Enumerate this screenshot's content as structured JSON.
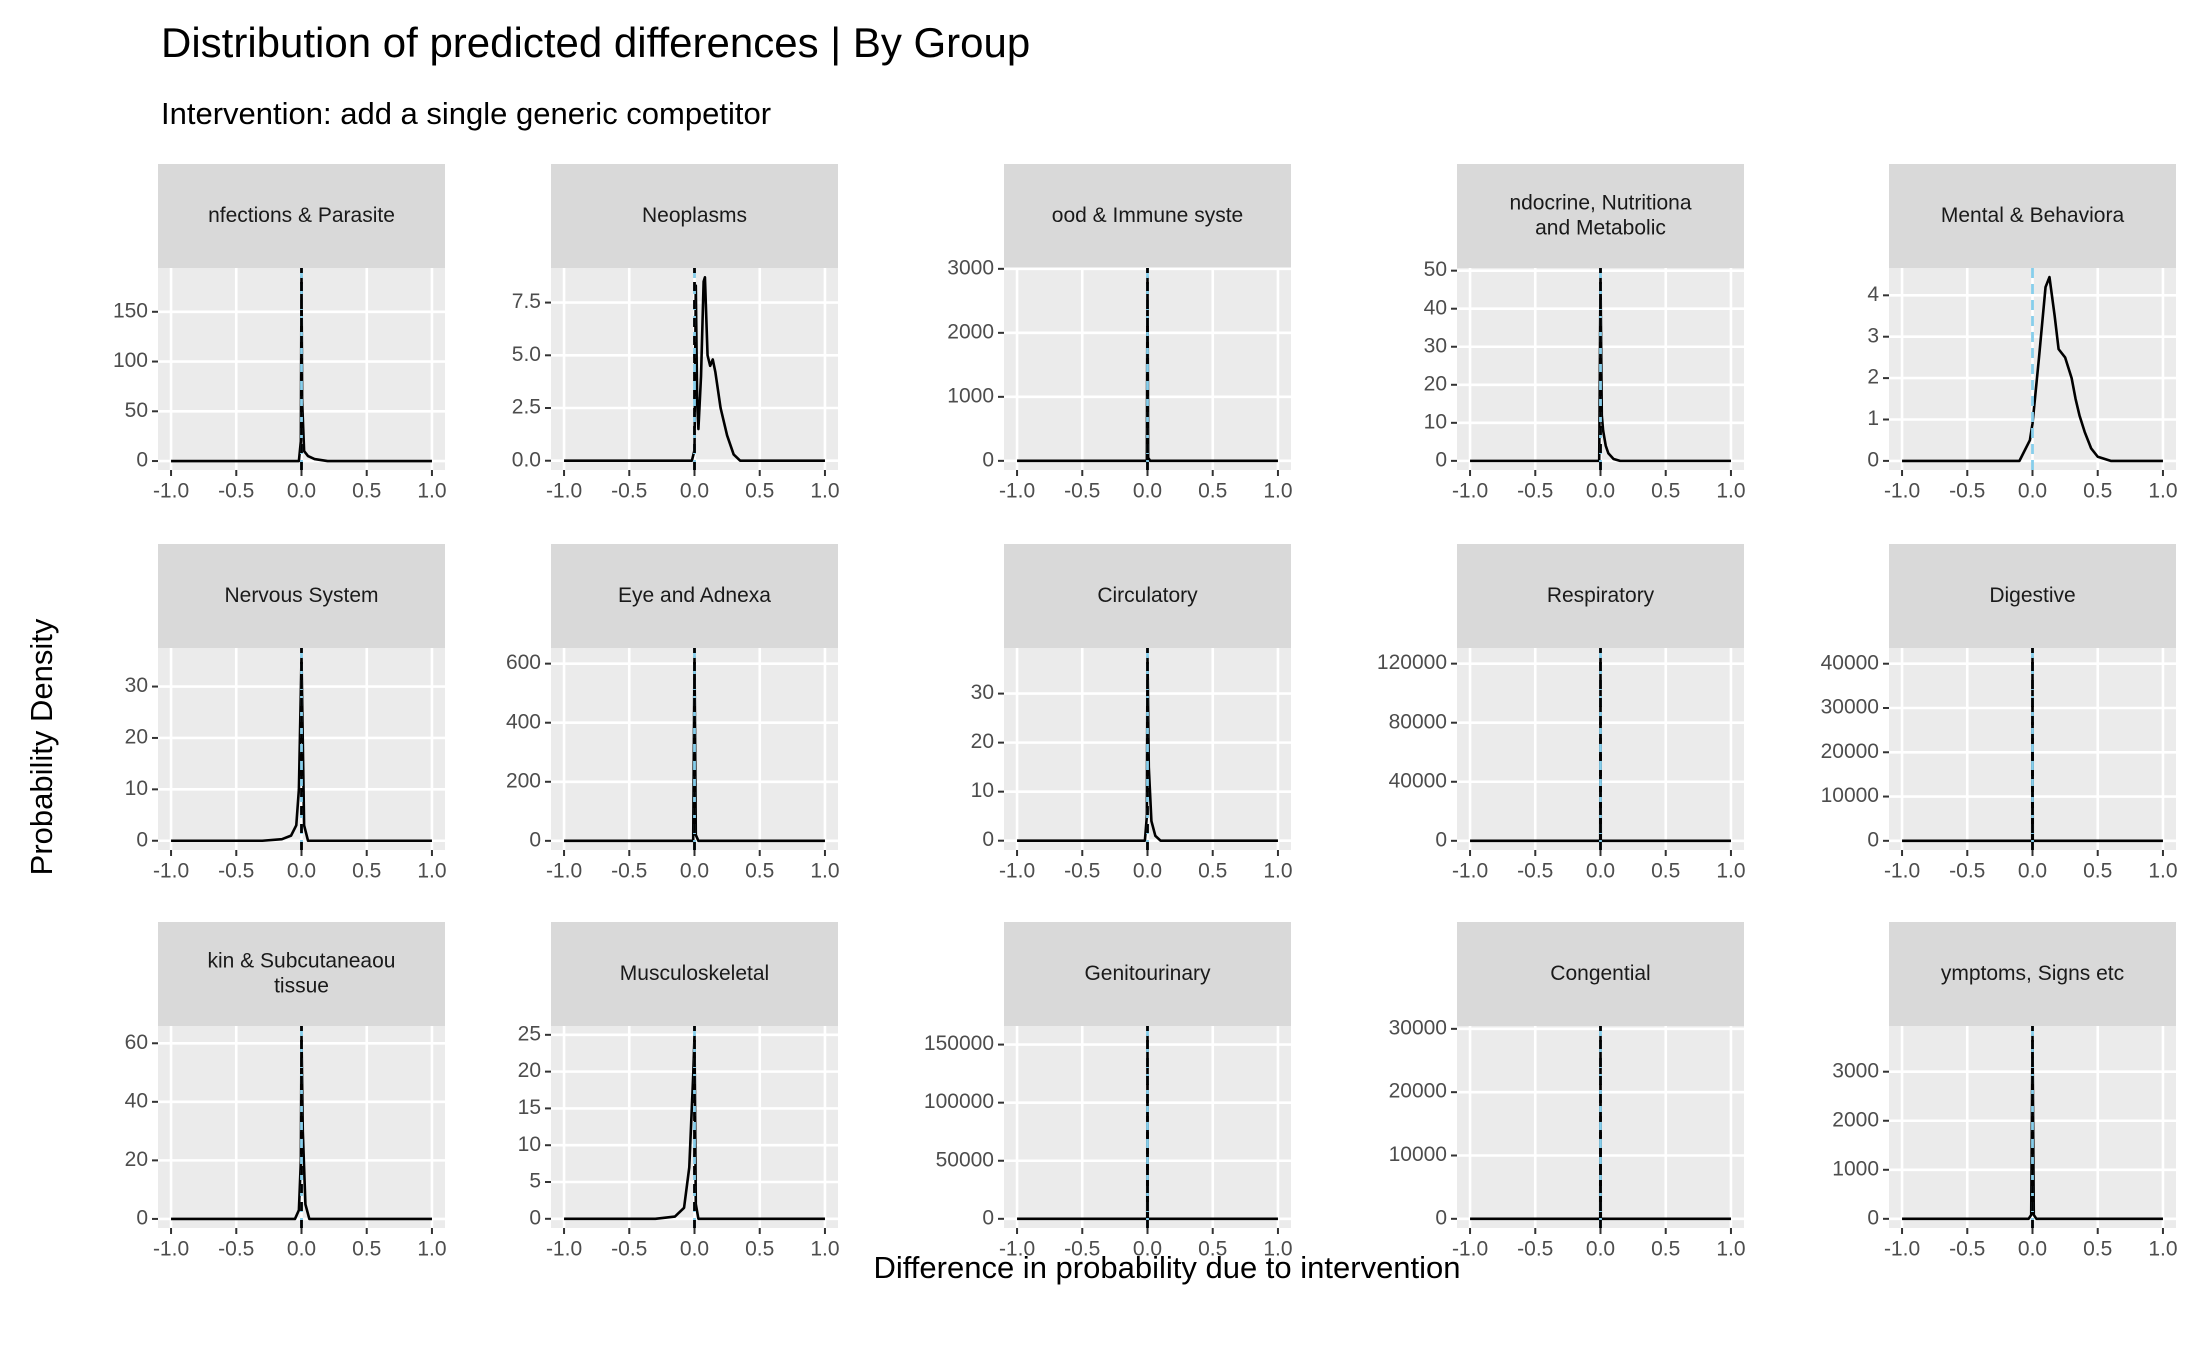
{
  "title": "Distribution of predicted differences | By Group",
  "subtitle": "Intervention: add a single generic competitor",
  "x_label": "Difference in probability due to intervention",
  "y_label": "Probability Density",
  "chart_data": [
    {
      "type": "line",
      "title": [
        "nfections & Parasite"
      ],
      "x": [
        -1,
        -0.02,
        -0.005,
        0,
        0.005,
        0.02,
        0.05,
        0.1,
        0.2,
        1
      ],
      "values": [
        0,
        0,
        20,
        185,
        60,
        10,
        5,
        2,
        0,
        0
      ],
      "color": "#000000",
      "xlim": [
        -1.1,
        1.1
      ],
      "ylim": [
        -9,
        194
      ],
      "xticks": [
        {
          "value": -1,
          "label": "-1.0"
        },
        {
          "value": -0.5,
          "label": "-0.5"
        },
        {
          "value": 0,
          "label": "0.0"
        },
        0.5,
        {
          "value": 1,
          "label": "1.0"
        }
      ],
      "yticks": [
        0,
        50,
        100,
        150
      ],
      "vlines": [
        {
          "value": 0,
          "color": "#87ceeb"
        },
        {
          "value": 0,
          "color": "#000000"
        }
      ],
      "grid": true
    },
    {
      "type": "line",
      "title": [
        "Neoplasms"
      ],
      "x": [
        -1,
        -0.02,
        0,
        0.01,
        0.02,
        0.03,
        0.05,
        0.07,
        0.08,
        0.1,
        0.12,
        0.14,
        0.16,
        0.2,
        0.25,
        0.3,
        0.35,
        1
      ],
      "values": [
        0,
        0,
        0.5,
        8.3,
        3,
        1.5,
        4,
        8.5,
        8.7,
        5,
        4.5,
        4.8,
        4.2,
        2.5,
        1.2,
        0.3,
        0,
        0
      ],
      "color": "#000000",
      "xlim": [
        -1.1,
        1.1
      ],
      "ylim": [
        -0.44,
        9.14
      ],
      "xticks": [
        {
          "value": -1,
          "label": "-1.0"
        },
        {
          "value": -0.5,
          "label": "-0.5"
        },
        {
          "value": 0,
          "label": "0.0"
        },
        0.5,
        {
          "value": 1,
          "label": "1.0"
        }
      ],
      "yticks": [
        {
          "value": 0,
          "label": "0.0"
        },
        2.5,
        {
          "value": 5,
          "label": "5.0"
        },
        7.5
      ],
      "vlines": [
        {
          "value": 0,
          "color": "#87ceeb"
        },
        {
          "value": 0,
          "color": "#000000"
        }
      ],
      "grid": true
    },
    {
      "type": "line",
      "title": [
        "ood & Immune syste"
      ],
      "x": [
        -1,
        -0.005,
        0,
        0.005,
        0.02,
        1
      ],
      "values": [
        0,
        0,
        2870,
        50,
        0,
        0
      ],
      "color": "#000000",
      "xlim": [
        -1.1,
        1.1
      ],
      "ylim": [
        -143,
        3013
      ],
      "xticks": [
        {
          "value": -1,
          "label": "-1.0"
        },
        {
          "value": -0.5,
          "label": "-0.5"
        },
        {
          "value": 0,
          "label": "0.0"
        },
        0.5,
        {
          "value": 1,
          "label": "1.0"
        }
      ],
      "yticks": [
        0,
        1000,
        2000,
        3000
      ],
      "vlines": [
        {
          "value": 0,
          "color": "#87ceeb"
        },
        {
          "value": 0,
          "color": "#000000"
        }
      ],
      "grid": true
    },
    {
      "type": "line",
      "title": [
        "ndocrine, Nutritiona",
        "and Metabolic"
      ],
      "x": [
        -1,
        -0.01,
        0,
        0.01,
        0.02,
        0.04,
        0.06,
        0.1,
        0.15,
        1
      ],
      "values": [
        0,
        0,
        48.3,
        12,
        8,
        4,
        2,
        0.5,
        0,
        0
      ],
      "color": "#000000",
      "xlim": [
        -1.1,
        1.1
      ],
      "ylim": [
        -2.4,
        50.7
      ],
      "xticks": [
        {
          "value": -1,
          "label": "-1.0"
        },
        {
          "value": -0.5,
          "label": "-0.5"
        },
        {
          "value": 0,
          "label": "0.0"
        },
        0.5,
        {
          "value": 1,
          "label": "1.0"
        }
      ],
      "yticks": [
        0,
        10,
        20,
        30,
        40,
        50
      ],
      "vlines": [
        {
          "value": 0,
          "color": "#87ceeb"
        },
        {
          "value": 0,
          "color": "#000000"
        }
      ],
      "grid": true
    },
    {
      "type": "line",
      "title": [
        "Mental & Behaviora"
      ],
      "x": [
        -1,
        -0.1,
        -0.02,
        0,
        0.05,
        0.1,
        0.13,
        0.17,
        0.2,
        0.25,
        0.3,
        0.33,
        0.36,
        0.4,
        0.45,
        0.5,
        0.6,
        1
      ],
      "values": [
        0,
        0,
        0.5,
        0.9,
        2.5,
        4.2,
        4.44,
        3.5,
        2.7,
        2.5,
        2,
        1.5,
        1.1,
        0.7,
        0.3,
        0.1,
        0,
        0
      ],
      "color": "#000000",
      "xlim": [
        -1.1,
        1.1
      ],
      "ylim": [
        -0.22,
        4.66
      ],
      "xticks": [
        {
          "value": -1,
          "label": "-1.0"
        },
        {
          "value": -0.5,
          "label": "-0.5"
        },
        {
          "value": 0,
          "label": "0.0"
        },
        0.5,
        {
          "value": 1,
          "label": "1.0"
        }
      ],
      "yticks": [
        0,
        1,
        2,
        3,
        4
      ],
      "vlines": [
        {
          "value": 0,
          "color": "#87ceeb"
        }
      ],
      "grid": true
    },
    {
      "type": "line",
      "title": [
        "Nervous System"
      ],
      "x": [
        -1,
        -0.3,
        -0.15,
        -0.08,
        -0.04,
        -0.02,
        0,
        0.02,
        0.05,
        1
      ],
      "values": [
        0,
        0,
        0.3,
        1,
        3,
        10,
        35.7,
        3,
        0,
        0
      ],
      "color": "#000000",
      "xlim": [
        -1.1,
        1.1
      ],
      "ylim": [
        -1.8,
        37.5
      ],
      "xticks": [
        {
          "value": -1,
          "label": "-1.0"
        },
        {
          "value": -0.5,
          "label": "-0.5"
        },
        {
          "value": 0,
          "label": "0.0"
        },
        0.5,
        {
          "value": 1,
          "label": "1.0"
        }
      ],
      "yticks": [
        0,
        10,
        20,
        30
      ],
      "vlines": [
        {
          "value": 0,
          "color": "#87ceeb"
        },
        {
          "value": 0,
          "color": "#000000"
        }
      ],
      "grid": true
    },
    {
      "type": "line",
      "title": [
        "Eye and Adnexa"
      ],
      "x": [
        -1,
        -0.01,
        0,
        0.01,
        0.03,
        1
      ],
      "values": [
        0,
        0,
        622,
        20,
        0,
        0
      ],
      "color": "#000000",
      "xlim": [
        -1.1,
        1.1
      ],
      "ylim": [
        -31,
        653
      ],
      "xticks": [
        {
          "value": -1,
          "label": "-1.0"
        },
        {
          "value": -0.5,
          "label": "-0.5"
        },
        {
          "value": 0,
          "label": "0.0"
        },
        0.5,
        {
          "value": 1,
          "label": "1.0"
        }
      ],
      "yticks": [
        0,
        200,
        400,
        600
      ],
      "vlines": [
        {
          "value": 0,
          "color": "#87ceeb"
        },
        {
          "value": 0,
          "color": "#000000"
        }
      ],
      "grid": true
    },
    {
      "type": "line",
      "title": [
        "Circulatory"
      ],
      "x": [
        -1,
        -0.02,
        -0.005,
        0,
        0.01,
        0.03,
        0.06,
        0.1,
        1
      ],
      "values": [
        0,
        0,
        5,
        37.4,
        15,
        4,
        1,
        0,
        0
      ],
      "color": "#000000",
      "xlim": [
        -1.1,
        1.1
      ],
      "ylim": [
        -1.9,
        39.3
      ],
      "xticks": [
        {
          "value": -1,
          "label": "-1.0"
        },
        {
          "value": -0.5,
          "label": "-0.5"
        },
        {
          "value": 0,
          "label": "0.0"
        },
        0.5,
        {
          "value": 1,
          "label": "1.0"
        }
      ],
      "yticks": [
        0,
        10,
        20,
        30
      ],
      "vlines": [
        {
          "value": 0,
          "color": "#87ceeb"
        },
        {
          "value": 0,
          "color": "#000000"
        }
      ],
      "grid": true
    },
    {
      "type": "line",
      "title": [
        "Respiratory"
      ],
      "x": [
        -1,
        -0.002,
        0,
        0.002,
        1
      ],
      "values": [
        0,
        0,
        124400,
        0,
        0
      ],
      "color": "#000000",
      "xlim": [
        -1.1,
        1.1
      ],
      "ylim": [
        -6220,
        130600
      ],
      "xticks": [
        {
          "value": -1,
          "label": "-1.0"
        },
        {
          "value": -0.5,
          "label": "-0.5"
        },
        {
          "value": 0,
          "label": "0.0"
        },
        0.5,
        {
          "value": 1,
          "label": "1.0"
        }
      ],
      "yticks": [
        0,
        40000,
        80000,
        120000
      ],
      "vlines": [
        {
          "value": 0,
          "color": "#87ceeb"
        },
        {
          "value": 0,
          "color": "#000000"
        }
      ],
      "grid": true
    },
    {
      "type": "line",
      "title": [
        "Digestive"
      ],
      "x": [
        -1,
        -0.002,
        0,
        0.002,
        1
      ],
      "values": [
        0,
        0,
        41480,
        0,
        0
      ],
      "color": "#000000",
      "xlim": [
        -1.1,
        1.1
      ],
      "ylim": [
        -2074,
        43550
      ],
      "xticks": [
        {
          "value": -1,
          "label": "-1.0"
        },
        {
          "value": -0.5,
          "label": "-0.5"
        },
        {
          "value": 0,
          "label": "0.0"
        },
        0.5,
        {
          "value": 1,
          "label": "1.0"
        }
      ],
      "yticks": [
        0,
        10000,
        20000,
        30000,
        40000
      ],
      "vlines": [
        {
          "value": 0,
          "color": "#87ceeb"
        },
        {
          "value": 0,
          "color": "#000000"
        }
      ],
      "grid": true
    },
    {
      "type": "line",
      "title": [
        "kin & Subcutaneaou",
        "tissue"
      ],
      "x": [
        -1,
        -0.05,
        -0.02,
        -0.005,
        0,
        0.01,
        0.03,
        0.06,
        1
      ],
      "values": [
        0,
        0,
        3,
        20,
        62.7,
        30,
        5,
        0,
        0
      ],
      "color": "#000000",
      "xlim": [
        -1.1,
        1.1
      ],
      "ylim": [
        -3.1,
        65.9
      ],
      "xticks": [
        {
          "value": -1,
          "label": "-1.0"
        },
        {
          "value": -0.5,
          "label": "-0.5"
        },
        {
          "value": 0,
          "label": "0.0"
        },
        0.5,
        {
          "value": 1,
          "label": "1.0"
        }
      ],
      "yticks": [
        0,
        20,
        40,
        60
      ],
      "vlines": [
        {
          "value": 0,
          "color": "#87ceeb"
        },
        {
          "value": 0,
          "color": "#000000"
        }
      ],
      "grid": true
    },
    {
      "type": "line",
      "title": [
        "Musculoskeletal"
      ],
      "x": [
        -1,
        -0.3,
        -0.15,
        -0.08,
        -0.04,
        -0.01,
        0,
        0.01,
        0.03,
        1
      ],
      "values": [
        0,
        0,
        0.3,
        1.5,
        7,
        19.5,
        24.9,
        2,
        0,
        0
      ],
      "color": "#000000",
      "xlim": [
        -1.1,
        1.1
      ],
      "ylim": [
        -1.25,
        26.2
      ],
      "xticks": [
        {
          "value": -1,
          "label": "-1.0"
        },
        {
          "value": -0.5,
          "label": "-0.5"
        },
        {
          "value": 0,
          "label": "0.0"
        },
        0.5,
        {
          "value": 1,
          "label": "1.0"
        }
      ],
      "yticks": [
        0,
        5,
        10,
        15,
        20,
        25
      ],
      "vlines": [
        {
          "value": 0,
          "color": "#87ceeb"
        },
        {
          "value": 0,
          "color": "#000000"
        }
      ],
      "grid": true
    },
    {
      "type": "line",
      "title": [
        "Genitourinary"
      ],
      "x": [
        -1,
        -0.002,
        0,
        0.002,
        1
      ],
      "values": [
        0,
        0,
        158000,
        0,
        0
      ],
      "color": "#000000",
      "xlim": [
        -1.1,
        1.1
      ],
      "ylim": [
        -7900,
        166000
      ],
      "xticks": [
        {
          "value": -1,
          "label": "-1.0"
        },
        {
          "value": -0.5,
          "label": "-0.5"
        },
        {
          "value": 0,
          "label": "0.0"
        },
        0.5,
        {
          "value": 1,
          "label": "1.0"
        }
      ],
      "yticks": [
        0,
        50000,
        100000,
        150000
      ],
      "vlines": [
        {
          "value": 0,
          "color": "#87ceeb"
        },
        {
          "value": 0,
          "color": "#000000"
        }
      ],
      "grid": true
    },
    {
      "type": "line",
      "title": [
        "Congential"
      ],
      "x": [
        -1,
        -0.002,
        0,
        0.002,
        1
      ],
      "values": [
        0,
        0,
        29000,
        0,
        0
      ],
      "color": "#000000",
      "xlim": [
        -1.1,
        1.1
      ],
      "ylim": [
        -1450,
        30450
      ],
      "xticks": [
        {
          "value": -1,
          "label": "-1.0"
        },
        {
          "value": -0.5,
          "label": "-0.5"
        },
        {
          "value": 0,
          "label": "0.0"
        },
        0.5,
        {
          "value": 1,
          "label": "1.0"
        }
      ],
      "yticks": [
        0,
        10000,
        20000,
        30000
      ],
      "vlines": [
        {
          "value": 0,
          "color": "#87ceeb"
        },
        {
          "value": 0,
          "color": "#000000"
        }
      ],
      "grid": true
    },
    {
      "type": "line",
      "title": [
        "ymptoms, Signs etc"
      ],
      "x": [
        -1,
        -0.03,
        -0.01,
        0,
        0.01,
        0.03,
        1
      ],
      "values": [
        0,
        0,
        80,
        3745,
        80,
        0,
        0
      ],
      "color": "#000000",
      "xlim": [
        -1.1,
        1.1
      ],
      "ylim": [
        -187,
        3932
      ],
      "xticks": [
        {
          "value": -1,
          "label": "-1.0"
        },
        {
          "value": -0.5,
          "label": "-0.5"
        },
        {
          "value": 0,
          "label": "0.0"
        },
        0.5,
        {
          "value": 1,
          "label": "1.0"
        }
      ],
      "yticks": [
        0,
        1000,
        2000,
        3000
      ],
      "vlines": [
        {
          "value": 0,
          "color": "#87ceeb"
        },
        {
          "value": 0,
          "color": "#000000"
        }
      ],
      "grid": true
    }
  ]
}
